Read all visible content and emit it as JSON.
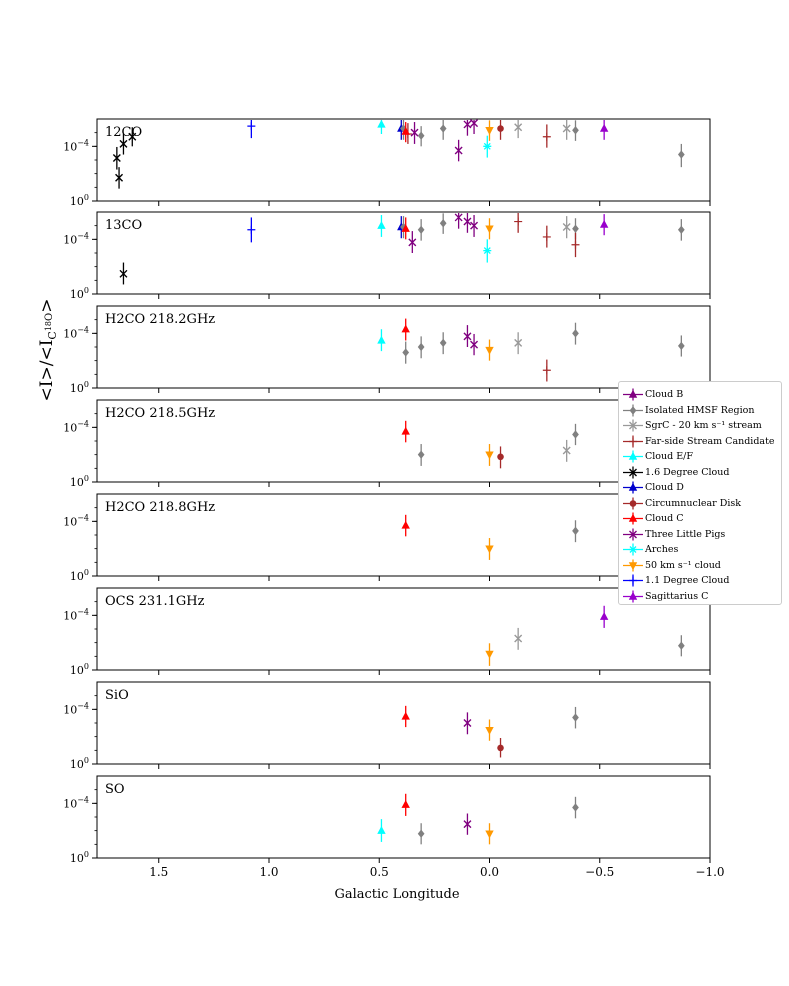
{
  "chart_data": {
    "type": "scatter",
    "xlabel": "Galactic Longitude",
    "ylabel": "<I>/<I_C18O>",
    "xlim": [
      1.78,
      -1.0
    ],
    "x_ticks": [
      1.5,
      1.0,
      0.5,
      0.0,
      -0.5,
      -1.0
    ],
    "x_tick_labels": [
      "1.5",
      "1.0",
      "0.5",
      "0.0",
      "−0.5",
      "−1.0"
    ],
    "y_scale": "log",
    "ylim": [
      0.0001,
      100
    ],
    "y_tick_labels": [
      "10^0",
      "10^-4"
    ],
    "error_bars": true,
    "legend_location": "right",
    "series_styles": [
      {
        "name": "Cloud B",
        "color": "#800080",
        "marker": "triangle-up"
      },
      {
        "name": "Isolated HMSF Region",
        "color": "#808080",
        "marker": "diamond"
      },
      {
        "name": "SgrC - 20 km s⁻¹ stream",
        "color": "#999999",
        "marker": "x"
      },
      {
        "name": "Far-side Stream Candidate",
        "color": "#a52a2a",
        "marker": "plus"
      },
      {
        "name": "Cloud E/F",
        "color": "#00ffff",
        "marker": "triangle-up"
      },
      {
        "name": "1.6 Degree Cloud",
        "color": "#000000",
        "marker": "x"
      },
      {
        "name": "Cloud D",
        "color": "#0000cd",
        "marker": "triangle-up"
      },
      {
        "name": "Circumnuclear Disk",
        "color": "#a52a2a",
        "marker": "circle"
      },
      {
        "name": "Cloud C",
        "color": "#ff0000",
        "marker": "triangle-up"
      },
      {
        "name": "Three Little Pigs",
        "color": "#800080",
        "marker": "x"
      },
      {
        "name": "Arches",
        "color": "#00ffff",
        "marker": "star"
      },
      {
        "name": "50 km s⁻¹ cloud",
        "color": "#ff9900",
        "marker": "triangle-down"
      },
      {
        "name": "1.1 Degree Cloud",
        "color": "#0000ff",
        "marker": "plus"
      },
      {
        "name": "Sagittarius C",
        "color": "#9900cc",
        "marker": "triangle-up"
      }
    ],
    "panels": [
      {
        "label": "12CO",
        "points": [
          {
            "s": "1.6 Degree Cloud",
            "x": 1.69,
            "y": 0.14,
            "lo": 0.02,
            "hi": 0.9
          },
          {
            "s": "1.6 Degree Cloud",
            "x": 1.68,
            "y": 0.005,
            "lo": 0.0008,
            "hi": 0.03
          },
          {
            "s": "1.6 Degree Cloud",
            "x": 1.66,
            "y": 1.5,
            "lo": 0.25,
            "hi": 8
          },
          {
            "s": "1.6 Degree Cloud",
            "x": 1.62,
            "y": 5,
            "lo": 1,
            "hi": 25
          },
          {
            "s": "1.1 Degree Cloud",
            "x": 1.08,
            "y": 30,
            "lo": 4,
            "hi": 200
          },
          {
            "s": "Cloud E/F",
            "x": 0.49,
            "y": 40,
            "lo": 8,
            "hi": 200
          },
          {
            "s": "Cloud D",
            "x": 0.4,
            "y": 20,
            "lo": 3,
            "hi": 100
          },
          {
            "s": "Isolated HMSF Region",
            "x": 0.39,
            "y": 20,
            "lo": 3,
            "hi": 100
          },
          {
            "s": "Far-side Stream Candidate",
            "x": 0.37,
            "y": 8,
            "lo": 1.5,
            "hi": 50
          },
          {
            "s": "Cloud C",
            "x": 0.38,
            "y": 12,
            "lo": 2,
            "hi": 60
          },
          {
            "s": "Three Little Pigs",
            "x": 0.34,
            "y": 10,
            "lo": 1.5,
            "hi": 60
          },
          {
            "s": "Isolated HMSF Region",
            "x": 0.31,
            "y": 6,
            "lo": 1,
            "hi": 30
          },
          {
            "s": "Isolated HMSF Region",
            "x": 0.21,
            "y": 20,
            "lo": 3,
            "hi": 100
          },
          {
            "s": "Three Little Pigs",
            "x": 0.14,
            "y": 0.5,
            "lo": 0.08,
            "hi": 3
          },
          {
            "s": "Three Little Pigs",
            "x": 0.1,
            "y": 40,
            "lo": 6,
            "hi": 300
          },
          {
            "s": "Three Little Pigs",
            "x": 0.07,
            "y": 50,
            "lo": 8,
            "hi": 300
          },
          {
            "s": "Arches",
            "x": 0.01,
            "y": 1,
            "lo": 0.15,
            "hi": 6
          },
          {
            "s": "50 km s⁻¹ cloud",
            "x": 0.0,
            "y": 15,
            "lo": 2.5,
            "hi": 80
          },
          {
            "s": "Circumnuclear Disk",
            "x": -0.05,
            "y": 20,
            "lo": 3,
            "hi": 100
          },
          {
            "s": "SgrC - 20 km s⁻¹ stream",
            "x": -0.13,
            "y": 25,
            "lo": 4,
            "hi": 150
          },
          {
            "s": "Far-side Stream Candidate",
            "x": -0.26,
            "y": 5,
            "lo": 0.8,
            "hi": 40
          },
          {
            "s": "SgrC - 20 km s⁻¹ stream",
            "x": -0.35,
            "y": 20,
            "lo": 3,
            "hi": 100
          },
          {
            "s": "Isolated HMSF Region",
            "x": -0.39,
            "y": 15,
            "lo": 2.5,
            "hi": 80
          },
          {
            "s": "Sagittarius C",
            "x": -0.52,
            "y": 20,
            "lo": 3,
            "hi": 100
          },
          {
            "s": "Isolated HMSF Region",
            "x": -0.87,
            "y": 0.25,
            "lo": 0.03,
            "hi": 1.5
          }
        ]
      },
      {
        "label": "13CO",
        "points": [
          {
            "s": "1.6 Degree Cloud",
            "x": 1.66,
            "y": 0.003,
            "lo": 0.0005,
            "hi": 0.02
          },
          {
            "s": "1.1 Degree Cloud",
            "x": 1.08,
            "y": 5,
            "lo": 0.6,
            "hi": 40
          },
          {
            "s": "Cloud E/F",
            "x": 0.49,
            "y": 10,
            "lo": 1.5,
            "hi": 60
          },
          {
            "s": "Cloud D",
            "x": 0.4,
            "y": 8,
            "lo": 1.2,
            "hi": 50
          },
          {
            "s": "Isolated HMSF Region",
            "x": 0.39,
            "y": 8,
            "lo": 1.2,
            "hi": 50
          },
          {
            "s": "Cloud C",
            "x": 0.38,
            "y": 6,
            "lo": 1,
            "hi": 40
          },
          {
            "s": "Three Little Pigs",
            "x": 0.35,
            "y": 0.6,
            "lo": 0.1,
            "hi": 4
          },
          {
            "s": "Isolated HMSF Region",
            "x": 0.31,
            "y": 5,
            "lo": 0.8,
            "hi": 30
          },
          {
            "s": "Isolated HMSF Region",
            "x": 0.21,
            "y": 15,
            "lo": 2.5,
            "hi": 80
          },
          {
            "s": "Three Little Pigs",
            "x": 0.14,
            "y": 40,
            "lo": 6,
            "hi": 250
          },
          {
            "s": "Three Little Pigs",
            "x": 0.1,
            "y": 20,
            "lo": 3,
            "hi": 150
          },
          {
            "s": "Three Little Pigs",
            "x": 0.07,
            "y": 10,
            "lo": 1.5,
            "hi": 60
          },
          {
            "s": "Arches",
            "x": 0.01,
            "y": 0.15,
            "lo": 0.02,
            "hi": 1
          },
          {
            "s": "50 km s⁻¹ cloud",
            "x": 0.0,
            "y": 6,
            "lo": 1,
            "hi": 35
          },
          {
            "s": "Far-side Stream Candidate",
            "x": -0.13,
            "y": 20,
            "lo": 3,
            "hi": 150
          },
          {
            "s": "Far-side Stream Candidate",
            "x": -0.26,
            "y": 1.5,
            "lo": 0.25,
            "hi": 10
          },
          {
            "s": "SgrC - 20 km s⁻¹ stream",
            "x": -0.35,
            "y": 8,
            "lo": 1.2,
            "hi": 50
          },
          {
            "s": "Isolated HMSF Region",
            "x": -0.39,
            "y": 6,
            "lo": 1,
            "hi": 35
          },
          {
            "s": "Far-side Stream Candidate",
            "x": -0.39,
            "y": 0.4,
            "lo": 0.05,
            "hi": 3
          },
          {
            "s": "Sagittarius C",
            "x": -0.52,
            "y": 12,
            "lo": 2,
            "hi": 70
          },
          {
            "s": "Isolated HMSF Region",
            "x": -0.87,
            "y": 5,
            "lo": 0.8,
            "hi": 30
          }
        ]
      },
      {
        "label": "H2CO 218.2GHz",
        "points": [
          {
            "s": "Cloud E/F",
            "x": 0.49,
            "y": 0.3,
            "lo": 0.05,
            "hi": 2
          },
          {
            "s": "Cloud C",
            "x": 0.38,
            "y": 2,
            "lo": 0.3,
            "hi": 12
          },
          {
            "s": "Isolated HMSF Region",
            "x": 0.38,
            "y": 0.04,
            "lo": 0.006,
            "hi": 0.25
          },
          {
            "s": "Isolated HMSF Region",
            "x": 0.31,
            "y": 0.1,
            "lo": 0.015,
            "hi": 0.6
          },
          {
            "s": "Isolated HMSF Region",
            "x": 0.21,
            "y": 0.2,
            "lo": 0.03,
            "hi": 1.2
          },
          {
            "s": "Three Little Pigs",
            "x": 0.1,
            "y": 0.6,
            "lo": 0.1,
            "hi": 4
          },
          {
            "s": "Three Little Pigs",
            "x": 0.07,
            "y": 0.15,
            "lo": 0.025,
            "hi": 0.9
          },
          {
            "s": "50 km s⁻¹ cloud",
            "x": 0.0,
            "y": 0.06,
            "lo": 0.01,
            "hi": 0.35
          },
          {
            "s": "SgrC - 20 km s⁻¹ stream",
            "x": -0.13,
            "y": 0.2,
            "lo": 0.03,
            "hi": 1.2
          },
          {
            "s": "Far-side Stream Candidate",
            "x": -0.26,
            "y": 0.002,
            "lo": 0.0003,
            "hi": 0.012
          },
          {
            "s": "Isolated HMSF Region",
            "x": -0.39,
            "y": 1,
            "lo": 0.15,
            "hi": 6
          },
          {
            "s": "Isolated HMSF Region",
            "x": -0.87,
            "y": 0.12,
            "lo": 0.02,
            "hi": 0.7
          }
        ]
      },
      {
        "label": "H2CO 218.5GHz",
        "points": [
          {
            "s": "Cloud C",
            "x": 0.38,
            "y": 0.5,
            "lo": 0.08,
            "hi": 3
          },
          {
            "s": "Isolated HMSF Region",
            "x": 0.31,
            "y": 0.01,
            "lo": 0.0015,
            "hi": 0.06
          },
          {
            "s": "50 km s⁻¹ cloud",
            "x": 0.0,
            "y": 0.01,
            "lo": 0.0015,
            "hi": 0.06
          },
          {
            "s": "Circumnuclear Disk",
            "x": -0.05,
            "y": 0.007,
            "lo": 0.001,
            "hi": 0.04
          },
          {
            "s": "SgrC - 20 km s⁻¹ stream",
            "x": -0.35,
            "y": 0.02,
            "lo": 0.003,
            "hi": 0.12
          },
          {
            "s": "Isolated HMSF Region",
            "x": -0.39,
            "y": 0.3,
            "lo": 0.05,
            "hi": 1.8
          }
        ]
      },
      {
        "label": "H2CO 218.8GHz",
        "points": [
          {
            "s": "Cloud C",
            "x": 0.38,
            "y": 0.5,
            "lo": 0.08,
            "hi": 3
          },
          {
            "s": "50 km s⁻¹ cloud",
            "x": 0.0,
            "y": 0.01,
            "lo": 0.0015,
            "hi": 0.06
          },
          {
            "s": "Isolated HMSF Region",
            "x": -0.39,
            "y": 0.2,
            "lo": 0.03,
            "hi": 1.2
          }
        ]
      },
      {
        "label": "OCS 231.1GHz",
        "points": [
          {
            "s": "SgrC - 20 km s⁻¹ stream",
            "x": -0.13,
            "y": 0.02,
            "lo": 0.003,
            "hi": 0.12
          },
          {
            "s": "50 km s⁻¹ cloud",
            "x": 0.0,
            "y": 0.0015,
            "lo": 0.0002,
            "hi": 0.009
          },
          {
            "s": "Sagittarius C",
            "x": -0.52,
            "y": 0.8,
            "lo": 0.12,
            "hi": 5
          },
          {
            "s": "Isolated HMSF Region",
            "x": -0.87,
            "y": 0.006,
            "lo": 0.001,
            "hi": 0.035
          }
        ]
      },
      {
        "label": "SiO",
        "points": [
          {
            "s": "Cloud C",
            "x": 0.38,
            "y": 0.3,
            "lo": 0.05,
            "hi": 1.8
          },
          {
            "s": "Three Little Pigs",
            "x": 0.1,
            "y": 0.1,
            "lo": 0.015,
            "hi": 0.6
          },
          {
            "s": "50 km s⁻¹ cloud",
            "x": 0.0,
            "y": 0.03,
            "lo": 0.005,
            "hi": 0.18
          },
          {
            "s": "Circumnuclear Disk",
            "x": -0.05,
            "y": 0.0015,
            "lo": 0.0003,
            "hi": 0.008
          },
          {
            "s": "Isolated HMSF Region",
            "x": -0.39,
            "y": 0.25,
            "lo": 0.04,
            "hi": 1.5
          }
        ]
      },
      {
        "label": "SO",
        "points": [
          {
            "s": "Cloud E/F",
            "x": 0.49,
            "y": 0.01,
            "lo": 0.0015,
            "hi": 0.07
          },
          {
            "s": "Cloud C",
            "x": 0.38,
            "y": 0.8,
            "lo": 0.12,
            "hi": 5
          },
          {
            "s": "Isolated HMSF Region",
            "x": 0.31,
            "y": 0.006,
            "lo": 0.001,
            "hi": 0.035
          },
          {
            "s": "Three Little Pigs",
            "x": 0.1,
            "y": 0.03,
            "lo": 0.005,
            "hi": 0.18
          },
          {
            "s": "50 km s⁻¹ cloud",
            "x": 0.0,
            "y": 0.006,
            "lo": 0.001,
            "hi": 0.035
          },
          {
            "s": "Isolated HMSF Region",
            "x": -0.39,
            "y": 0.5,
            "lo": 0.08,
            "hi": 3
          }
        ]
      }
    ]
  }
}
